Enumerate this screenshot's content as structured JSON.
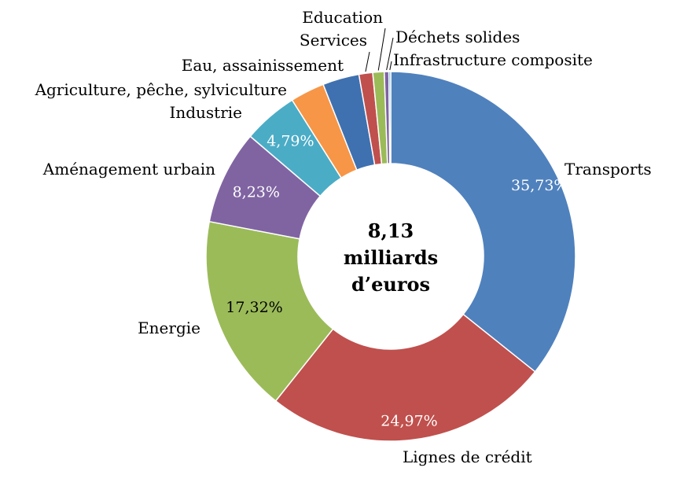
{
  "chart_data": {
    "type": "pie",
    "donut": true,
    "center_text": [
      "8,13",
      "milliards",
      "d’euros"
    ],
    "slices": [
      {
        "name": "Transports",
        "value": 35.73,
        "value_label": "35,73%",
        "color": "#4F81BD",
        "label_color": "#FFFFFF"
      },
      {
        "name": "Lignes de crédit",
        "value": 24.97,
        "value_label": "24,97%",
        "color": "#C0504D",
        "label_color": "#FFFFFF"
      },
      {
        "name": "Energie",
        "value": 17.32,
        "value_label": "17,32%",
        "color": "#9BBB59",
        "label_color": "#000000"
      },
      {
        "name": "Aménagement urbain",
        "value": 8.23,
        "value_label": "8,23%",
        "color": "#8064A2",
        "label_color": "#FFFFFF"
      },
      {
        "name": "Industrie",
        "value": 4.79,
        "value_label": "4,79%",
        "color": "#4BACC6",
        "label_color": "#FFFFFF"
      },
      {
        "name": "Agriculture, pêche, sylviculture",
        "value": 3.0,
        "value_label": "",
        "color": "#F79646",
        "label_color": "#000000"
      },
      {
        "name": "Eau, assainissement",
        "value": 3.2,
        "value_label": "",
        "color": "#3F71B0",
        "label_color": "#000000"
      },
      {
        "name": "Services",
        "value": 1.2,
        "value_label": "",
        "color": "#C0504D",
        "label_color": "#000000"
      },
      {
        "name": "Education",
        "value": 1.0,
        "value_label": "",
        "color": "#9BBB59",
        "label_color": "#000000"
      },
      {
        "name": "Déchets solides",
        "value": 0.4,
        "value_label": "",
        "color": "#8064A2",
        "label_color": "#000000"
      },
      {
        "name": "Infrastructure composite",
        "value": 0.16,
        "value_label": "",
        "color": "#4BACC6",
        "label_color": "#000000"
      }
    ]
  }
}
